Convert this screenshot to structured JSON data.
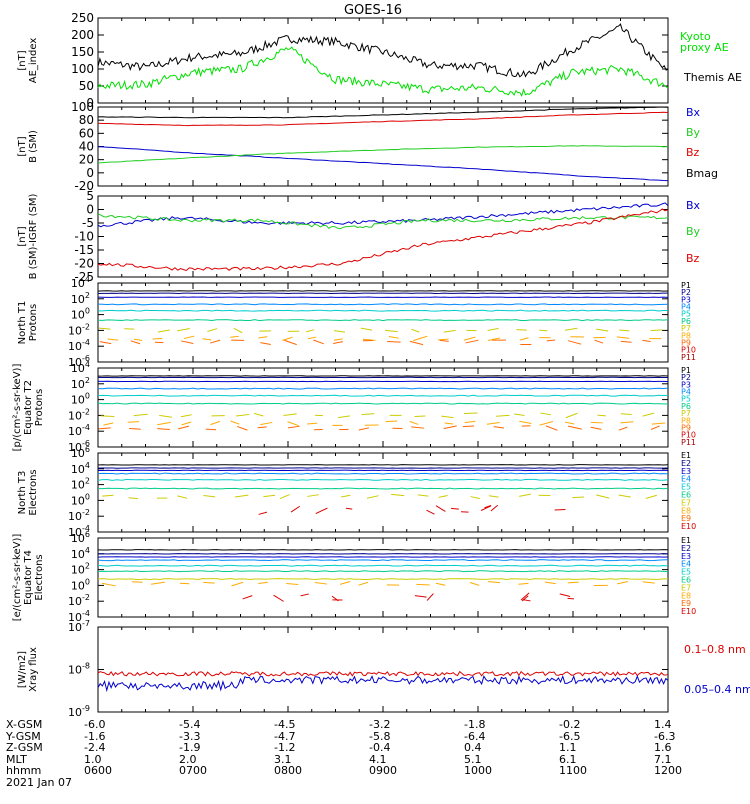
{
  "title": "GOES-16",
  "date_label": "2021 Jan 07",
  "colors": {
    "black": "#000000",
    "green": "#22cc22",
    "bright_green": "#00e000",
    "blue": "#0000cc",
    "red": "#dd0000"
  },
  "chart_data": [
    {
      "type": "line",
      "panel": "ae_index",
      "ylabel": "AE_index\n[nT]",
      "ylim": [
        0,
        250
      ],
      "yticks": [
        "0",
        "50",
        "100",
        "150",
        "200",
        "250"
      ],
      "x": [
        "0600",
        "0630",
        "0700",
        "0730",
        "0800",
        "0830",
        "0900",
        "0930",
        "1000",
        "1030",
        "1100",
        "1130",
        "1200"
      ],
      "series": [
        {
          "name": "Themis AE",
          "color": "#000000",
          "values": [
            120,
            105,
            135,
            145,
            190,
            180,
            150,
            110,
            110,
            80,
            160,
            220,
            90
          ]
        },
        {
          "name": "Kyoto\nproxy AE",
          "color": "#00e000",
          "values": [
            50,
            55,
            90,
            100,
            160,
            70,
            55,
            40,
            45,
            30,
            90,
            100,
            50
          ]
        }
      ]
    },
    {
      "type": "line",
      "panel": "b_sm",
      "ylabel": "B (SM)\n[nT]",
      "ylim": [
        -20,
        100
      ],
      "yticks": [
        "-20",
        "0",
        "20",
        "40",
        "60",
        "80",
        "100"
      ],
      "series": [
        {
          "name": "Bx",
          "color": "#0000cc",
          "values": [
            40,
            30,
            22,
            14,
            6,
            -4,
            -12
          ]
        },
        {
          "name": "By",
          "color": "#22cc22",
          "values": [
            15,
            23,
            30,
            35,
            39,
            41,
            40
          ]
        },
        {
          "name": "Bz",
          "color": "#dd0000",
          "values": [
            75,
            72,
            73,
            78,
            82,
            88,
            92
          ]
        },
        {
          "name": "Bmag",
          "color": "#000000",
          "values": [
            85,
            84,
            84,
            88,
            92,
            97,
            100
          ]
        }
      ]
    },
    {
      "type": "line",
      "panel": "b_sm_minus_igrf",
      "ylabel": "B (SM)-IGRF (SM)\n[nT]",
      "ylim": [
        -25,
        5
      ],
      "yticks": [
        "-25",
        "-20",
        "-15",
        "-10",
        "-5",
        "0",
        "5"
      ],
      "series": [
        {
          "name": "Bx",
          "color": "#0000cc",
          "values": [
            -6,
            -3,
            -5,
            -5,
            -4,
            -2,
            0,
            2
          ]
        },
        {
          "name": "By",
          "color": "#22cc22",
          "values": [
            -2,
            -4,
            -4,
            -7,
            -4,
            -4,
            -3,
            -3
          ]
        },
        {
          "name": "Bz",
          "color": "#dd0000",
          "values": [
            -20,
            -22,
            -22,
            -20,
            -13,
            -9,
            -5,
            0
          ]
        }
      ]
    },
    {
      "type": "line",
      "panel": "protons_north",
      "ylabel": "Protons\nNorth T1",
      "ylim_exp": [
        -6,
        4
      ],
      "ytick_exponents": [
        "-6",
        "-4",
        "-2",
        "0",
        "2",
        "4"
      ],
      "series_names": [
        "P1",
        "P2",
        "P3",
        "P4",
        "P5",
        "P6",
        "P7",
        "P8",
        "P9",
        "P10",
        "P11"
      ],
      "series_log10": [
        3.0,
        2.7,
        2.2,
        1.3,
        0.5,
        -0.7,
        -2.0,
        -3.0,
        -3.5
      ]
    },
    {
      "type": "line",
      "panel": "protons_equator",
      "ylabel": "Protons\nEquator T2\n[p/(cm²-s-sr-keV)]",
      "ylim_exp": [
        -6,
        4
      ],
      "ytick_exponents": [
        "-6",
        "-4",
        "-2",
        "0",
        "2",
        "4"
      ],
      "series_names": [
        "P1",
        "P2",
        "P3",
        "P4",
        "P5",
        "P6",
        "P7",
        "P8",
        "P9",
        "P10",
        "P11"
      ],
      "series_log10": [
        3.0,
        2.8,
        2.3,
        1.4,
        0.5,
        -0.5,
        -2.0,
        -3.0,
        -3.6
      ]
    },
    {
      "type": "line",
      "panel": "electrons_north",
      "ylabel": "Electrons\nNorth T3",
      "ylim_exp": [
        -4,
        6
      ],
      "ytick_exponents": [
        "-4",
        "-2",
        "0",
        "2",
        "4",
        "6"
      ],
      "series_names": [
        "E1",
        "E2",
        "E3",
        "E4",
        "E5",
        "E6",
        "E7",
        "E8",
        "E9",
        "E10"
      ],
      "series_log10": [
        4.5,
        4.1,
        3.8,
        3.4,
        2.6,
        1.5,
        0.5
      ]
    },
    {
      "type": "line",
      "panel": "electrons_equator",
      "ylabel": "Electrons\nEquator T4\n[e/(cm²-s-sr-keV)]",
      "ylim_exp": [
        -4,
        6
      ],
      "ytick_exponents": [
        "-4",
        "-2",
        "0",
        "2",
        "4",
        "6"
      ],
      "series_names": [
        "E1",
        "E2",
        "E3",
        "E4",
        "E5",
        "E6",
        "E7",
        "E8",
        "E9",
        "E10"
      ],
      "series_log10": [
        4.5,
        4.0,
        3.6,
        3.2,
        2.5,
        1.8,
        0.8,
        0.2
      ]
    },
    {
      "type": "line",
      "panel": "xray_flux",
      "ylabel": "Xray flux\n[W/m2]",
      "ylim_exp": [
        -9,
        -7
      ],
      "ytick_exponents": [
        "-9",
        "-8",
        "-7"
      ],
      "series": [
        {
          "name": "0.1–0.8 nm",
          "color": "#dd0000",
          "log10": -8.1
        },
        {
          "name": "0.05–0.4 nm",
          "color": "#0000cc",
          "log10": -8.25
        }
      ]
    }
  ],
  "x_axis": {
    "row_labels": [
      "X-GSM",
      "Y-GSM",
      "Z-GSM",
      "MLT",
      "hhmm"
    ],
    "columns": [
      {
        "x_gsm": "-6.0",
        "y_gsm": "-1.6",
        "z_gsm": "-2.4",
        "mlt": "1.0",
        "hhmm": "0600"
      },
      {
        "x_gsm": "-5.4",
        "y_gsm": "-3.3",
        "z_gsm": "-1.9",
        "mlt": "2.0",
        "hhmm": "0700"
      },
      {
        "x_gsm": "-4.5",
        "y_gsm": "-4.7",
        "z_gsm": "-1.2",
        "mlt": "3.1",
        "hhmm": "0800"
      },
      {
        "x_gsm": "-3.2",
        "y_gsm": "-5.8",
        "z_gsm": "-0.4",
        "mlt": "4.1",
        "hhmm": "0900"
      },
      {
        "x_gsm": "-1.8",
        "y_gsm": "-6.4",
        "z_gsm": "0.4",
        "mlt": "5.1",
        "hhmm": "1000"
      },
      {
        "x_gsm": "-0.2",
        "y_gsm": "-6.5",
        "z_gsm": "1.1",
        "mlt": "6.1",
        "hhmm": "1100"
      },
      {
        "x_gsm": "1.4",
        "y_gsm": "-6.3",
        "z_gsm": "1.6",
        "mlt": "7.1",
        "hhmm": "1200"
      }
    ]
  },
  "legend_colors_p": [
    "#000000",
    "#000088",
    "#0000cc",
    "#0088ff",
    "#00cccc",
    "#00cc88",
    "#cccc00",
    "#ffaa00",
    "#ff6600",
    "#dd0000",
    "#aa0000"
  ],
  "legend_colors_e": [
    "#000000",
    "#000088",
    "#0000cc",
    "#0088ff",
    "#00cccc",
    "#00cc88",
    "#cccc00",
    "#ffaa00",
    "#ff6600",
    "#dd0000"
  ]
}
